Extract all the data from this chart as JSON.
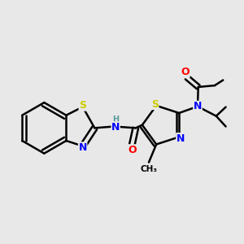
{
  "bg_color": "#e8e8e8",
  "bond_color": "#000000",
  "bond_width": 1.8,
  "atom_colors": {
    "S": "#cccc00",
    "N": "#0000ff",
    "O": "#ff0000",
    "H": "#5a9a9a",
    "C": "#000000"
  },
  "font_size_atom": 9,
  "font_size_small": 7.5
}
